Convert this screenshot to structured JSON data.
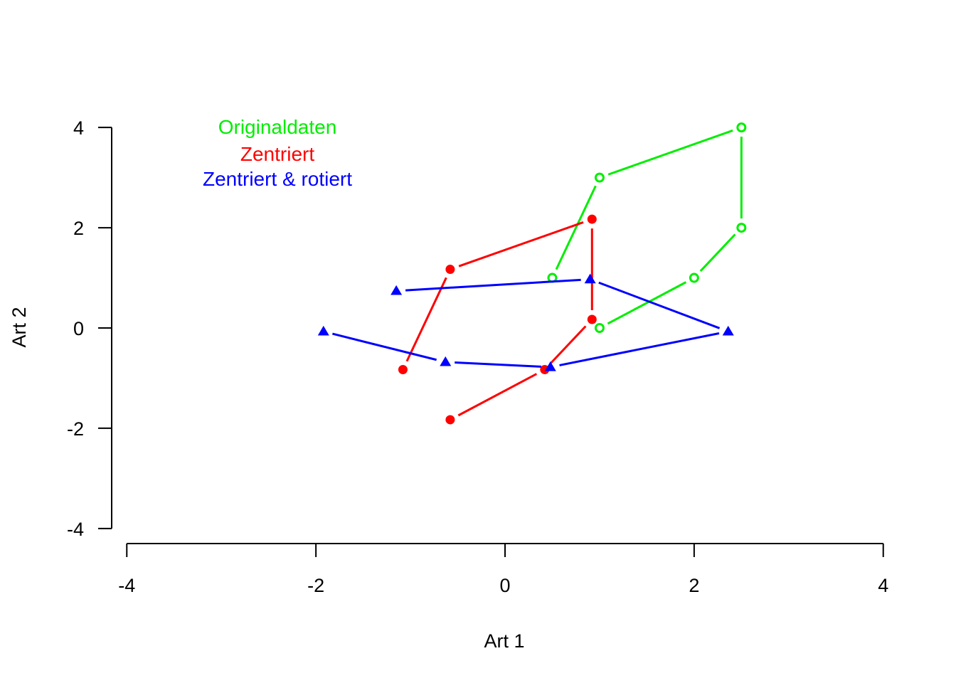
{
  "chart_data": {
    "type": "scatter",
    "xlabel": "Art 1",
    "ylabel": "Art 2",
    "xlim": [
      -4.16,
      4.16
    ],
    "ylim": [
      -4.3,
      4.3
    ],
    "xticks": [
      "-4",
      "-2",
      "0",
      "2",
      "4"
    ],
    "yticks": [
      "-4",
      "-2",
      "0",
      "2",
      "4"
    ],
    "legend_position": "top-left",
    "series": [
      {
        "name": "Originaldaten",
        "color": "#00ee00",
        "marker": "open-circle",
        "x": [
          0.5,
          1.0,
          2.5,
          2.5,
          2.0,
          1.0
        ],
        "y": [
          1.0,
          3.0,
          4.0,
          2.0,
          1.0,
          0.0
        ]
      },
      {
        "name": "Zentriert",
        "color": "#ff0000",
        "marker": "filled-circle",
        "x": [
          -1.08,
          -0.58,
          0.92,
          0.92,
          0.42,
          -0.58
        ],
        "y": [
          -0.83,
          1.17,
          2.17,
          0.17,
          -0.83,
          -1.83
        ]
      },
      {
        "name": "Zentriert & rotiert",
        "color": "#0000ff",
        "marker": "filled-triangle",
        "x": [
          -1.15,
          0.9,
          2.36,
          0.48,
          -0.63,
          -1.92
        ],
        "y": [
          0.74,
          0.97,
          -0.07,
          -0.78,
          -0.68,
          -0.07
        ]
      }
    ]
  }
}
